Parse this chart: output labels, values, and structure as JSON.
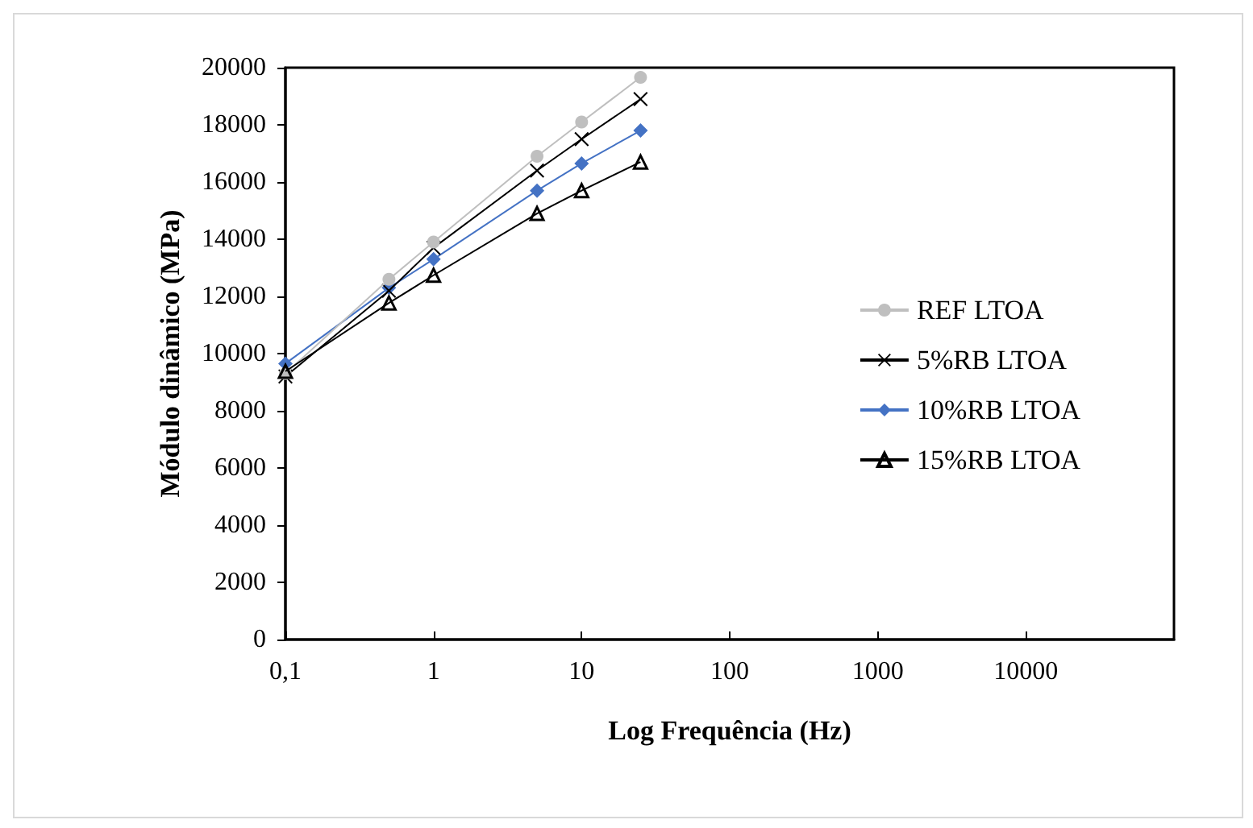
{
  "chart_data": {
    "type": "line",
    "xlabel": "Log Frequência (Hz)",
    "ylabel": "Módulo dinâmico (MPa)",
    "log": "x",
    "x": [
      0.1,
      0.5,
      1,
      5,
      10,
      25
    ],
    "xlim": [
      0.1,
      100000
    ],
    "xticks": [
      {
        "value": 0.1,
        "label": "0,1"
      },
      1,
      10,
      100,
      1000,
      10000
    ],
    "ylim": [
      0,
      20000
    ],
    "yticks": [
      0,
      2000,
      4000,
      6000,
      8000,
      10000,
      12000,
      14000,
      16000,
      18000,
      20000
    ],
    "grid": false,
    "legend": "right",
    "series": [
      {
        "name": "REF LTOA",
        "color": "#bfbfbf",
        "marker": "circle",
        "values": [
          9300,
          12600,
          13900,
          16900,
          18100,
          19660
        ]
      },
      {
        "name": "5%RB LTOA",
        "color": "#000000",
        "marker": "cross",
        "values": [
          9200,
          12200,
          13700,
          16400,
          17500,
          18900
        ]
      },
      {
        "name": "10%RB LTOA",
        "color": "#4472c4",
        "marker": "diamond",
        "values": [
          9650,
          12300,
          13300,
          15700,
          16650,
          17800
        ]
      },
      {
        "name": "15%RB LTOA",
        "color": "#000000",
        "marker": "triangle",
        "values": [
          9380,
          11770,
          12740,
          14900,
          15700,
          16700
        ]
      }
    ]
  }
}
